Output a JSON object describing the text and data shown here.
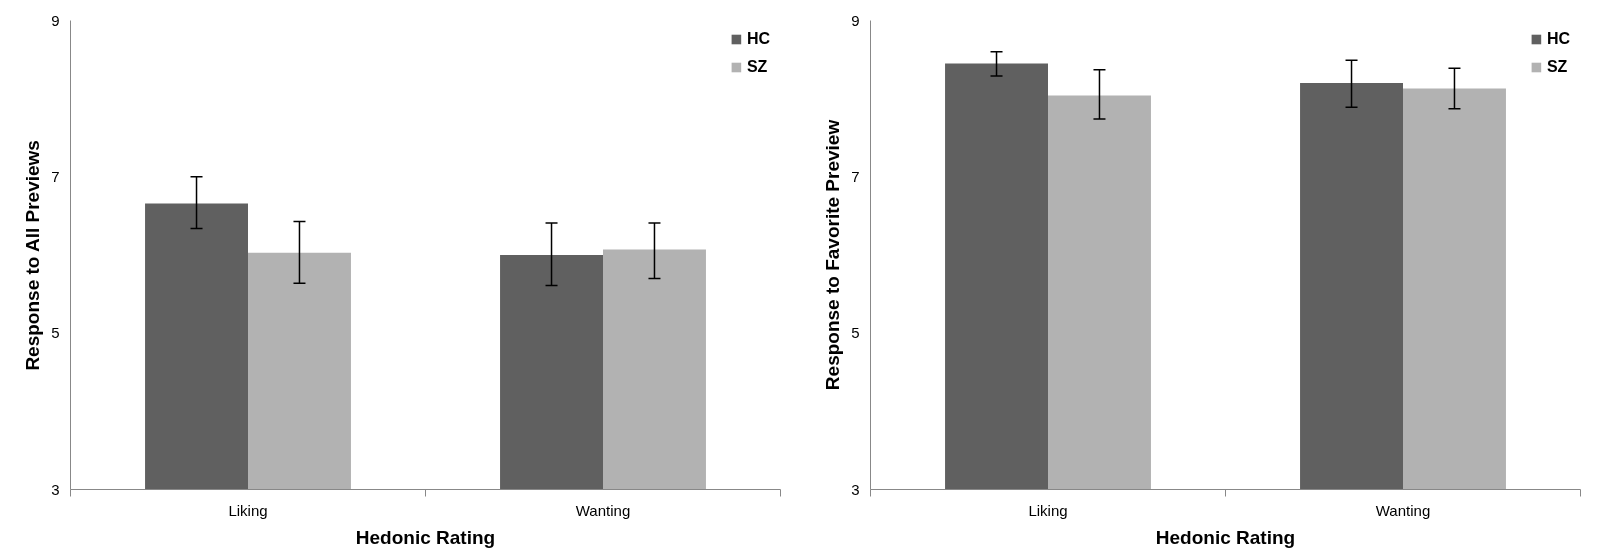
{
  "chart_data": [
    {
      "type": "bar",
      "xlabel": "Hedonic Rating",
      "ylabel": "Response to All Previews",
      "categories": [
        "Liking",
        "Wanting"
      ],
      "ylim": [
        3,
        9
      ],
      "yticks": [
        3,
        5,
        7,
        9
      ],
      "grid": false,
      "legend": "top right",
      "series": [
        {
          "name": "HC",
          "color": "#606060",
          "values": [
            6.66,
            6.0
          ],
          "errors": [
            [
              6.34,
              7.0
            ],
            [
              5.61,
              6.41
            ]
          ]
        },
        {
          "name": "SZ",
          "color": "#b2b2b2",
          "values": [
            6.03,
            6.07
          ],
          "errors": [
            [
              5.64,
              6.43
            ],
            [
              5.7,
              6.41
            ]
          ]
        }
      ]
    },
    {
      "type": "bar",
      "xlabel": "Hedonic Rating",
      "ylabel": "Response to Favorite Preview",
      "categories": [
        "Liking",
        "Wanting"
      ],
      "ylim": [
        3,
        9
      ],
      "yticks": [
        3,
        5,
        7,
        9
      ],
      "grid": false,
      "legend": "top right",
      "series": [
        {
          "name": "HC",
          "color": "#606060",
          "values": [
            8.45,
            8.2
          ],
          "errors": [
            [
              8.29,
              8.6
            ],
            [
              7.89,
              8.49
            ]
          ]
        },
        {
          "name": "SZ",
          "color": "#b2b2b2",
          "values": [
            8.04,
            8.13
          ],
          "errors": [
            [
              7.74,
              8.37
            ],
            [
              7.87,
              8.39
            ]
          ]
        }
      ]
    }
  ]
}
